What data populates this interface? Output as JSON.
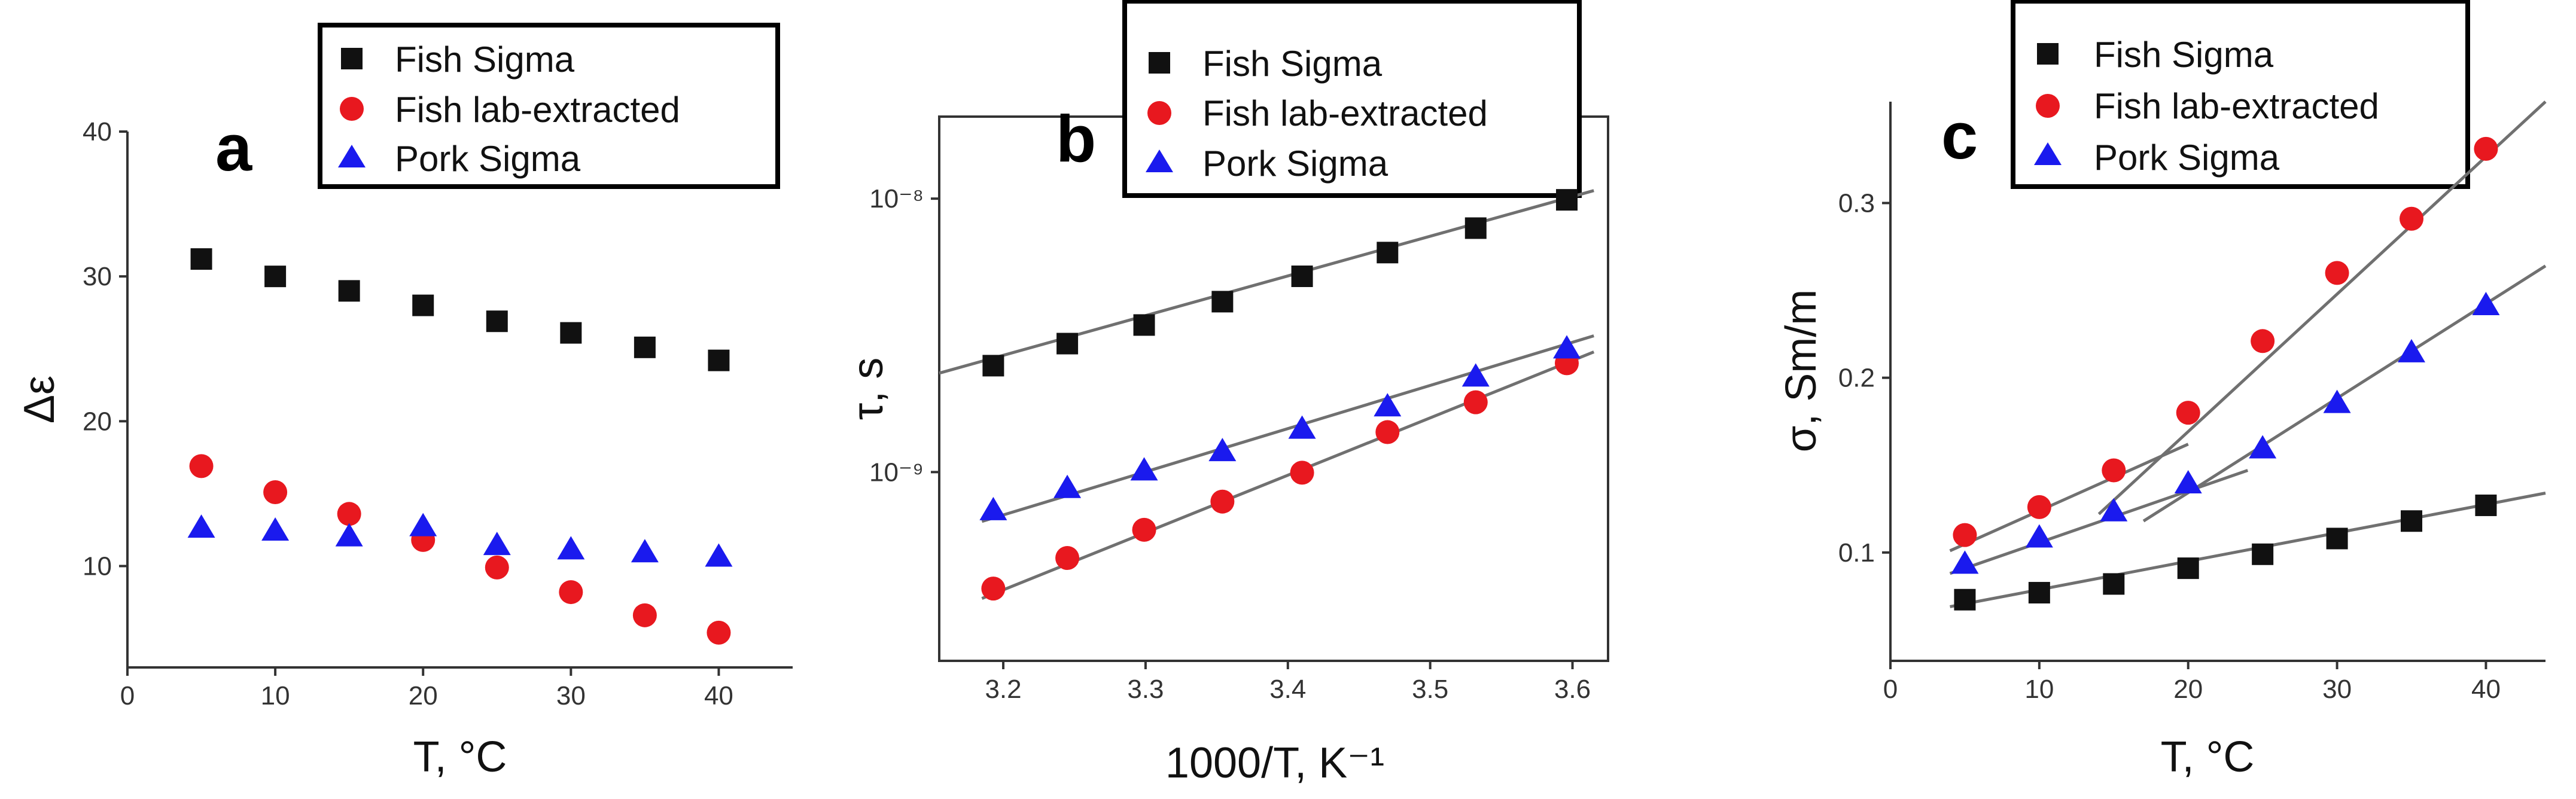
{
  "colors": {
    "fish_sigma": "#111111",
    "fish_lab": "#e8181f",
    "pork_sigma": "#1a1aee",
    "fit_line": "#707070"
  },
  "legend": [
    "Fish Sigma",
    "Fish lab-extracted",
    "Pork Sigma"
  ],
  "chart_data": [
    {
      "panel": "a",
      "type": "scatter",
      "xlabel": "T, °C",
      "ylabel": "Δε",
      "xlim": [
        0,
        45
      ],
      "ylim": [
        3,
        40
      ],
      "xticks": [
        0,
        10,
        20,
        30,
        40
      ],
      "yticks": [
        10,
        20,
        30,
        40
      ],
      "x": [
        5,
        10,
        15,
        20,
        25,
        30,
        35,
        40
      ],
      "series": [
        {
          "name": "Fish Sigma",
          "marker": "square",
          "values": [
            31.2,
            30.0,
            29.0,
            28.0,
            26.9,
            26.1,
            25.1,
            24.2
          ]
        },
        {
          "name": "Fish lab-extracted",
          "marker": "circle",
          "values": [
            16.9,
            15.1,
            13.6,
            11.8,
            9.9,
            8.2,
            6.6,
            5.4
          ]
        },
        {
          "name": "Pork Sigma",
          "marker": "triangle",
          "values": [
            12.7,
            12.5,
            12.1,
            12.8,
            11.5,
            11.2,
            11.0,
            10.7
          ]
        }
      ]
    },
    {
      "panel": "b",
      "type": "scatter",
      "xlabel": "1000/T, K⁻¹",
      "ylabel": "τ, s",
      "yscale": "log",
      "xlim": [
        3.155,
        3.625
      ],
      "ylim": [
        2.04e-10,
        1.995e-08
      ],
      "xticks": [
        3.2,
        3.3,
        3.4,
        3.5,
        3.6
      ],
      "xtick_labels": [
        "3.2",
        "3.3",
        "3.4",
        "3.5",
        "3.6"
      ],
      "yticks": [
        1e-09,
        1e-08
      ],
      "ytick_labels": [
        "10⁻⁹",
        "10⁻⁸"
      ],
      "x": [
        3.193,
        3.245,
        3.299,
        3.354,
        3.41,
        3.47,
        3.532,
        3.596
      ],
      "series": [
        {
          "name": "Fish Sigma",
          "marker": "square",
          "values": [
            2.45e-09,
            2.95e-09,
            3.45e-09,
            4.2e-09,
            5.2e-09,
            6.35e-09,
            7.8e-09,
            9.9e-09
          ],
          "fit": [
            [
              3.155,
              2.3e-09
            ],
            [
              3.615,
              1.07e-08
            ]
          ]
        },
        {
          "name": "Fish lab-extracted",
          "marker": "circle",
          "values": [
            3.75e-10,
            4.85e-10,
            6.15e-10,
            7.8e-10,
            9.95e-10,
            1.4e-09,
            1.8e-09,
            2.5e-09
          ],
          "fit": [
            [
              3.185,
              3.45e-10
            ],
            [
              3.615,
              2.75e-09
            ]
          ]
        },
        {
          "name": "Pork Sigma",
          "marker": "triangle",
          "values": [
            7.3e-10,
            8.8e-10,
            1.02e-09,
            1.2e-09,
            1.45e-09,
            1.75e-09,
            2.25e-09,
            2.85e-09
          ],
          "fit": [
            [
              3.185,
              6.6e-10
            ],
            [
              3.615,
              3.15e-09
            ]
          ]
        }
      ]
    },
    {
      "panel": "c",
      "type": "scatter",
      "xlabel": "T, °C",
      "ylabel": "σ, Sm/m",
      "xlim": [
        0,
        44
      ],
      "ylim": [
        0.038,
        0.358
      ],
      "xticks": [
        0,
        10,
        20,
        30,
        40
      ],
      "yticks": [
        0.1,
        0.2,
        0.3
      ],
      "x": [
        5,
        10,
        15,
        20,
        25,
        30,
        35,
        40
      ],
      "series": [
        {
          "name": "Fish Sigma",
          "marker": "square",
          "values": [
            0.073,
            0.077,
            0.082,
            0.091,
            0.099,
            0.108,
            0.118,
            0.127
          ],
          "fit": [
            [
              4,
              0.069
            ],
            [
              44,
              0.134
            ]
          ]
        },
        {
          "name": "Fish lab-extracted",
          "marker": "circle",
          "values": [
            0.11,
            0.126,
            0.147,
            0.18,
            0.221,
            0.26,
            0.291,
            0.331
          ],
          "fit": [
            [
              4,
              0.101
            ],
            [
              20,
              0.162
            ],
            [
              14,
              0.122
            ],
            [
              44,
              0.358
            ]
          ]
        },
        {
          "name": "Pork Sigma",
          "marker": "triangle",
          "values": [
            0.094,
            0.109,
            0.124,
            0.14,
            0.16,
            0.186,
            0.215,
            0.242
          ],
          "fit": [
            [
              4,
              0.088
            ],
            [
              24,
              0.147
            ],
            [
              17,
              0.118
            ],
            [
              44,
              0.264
            ]
          ]
        }
      ]
    }
  ]
}
